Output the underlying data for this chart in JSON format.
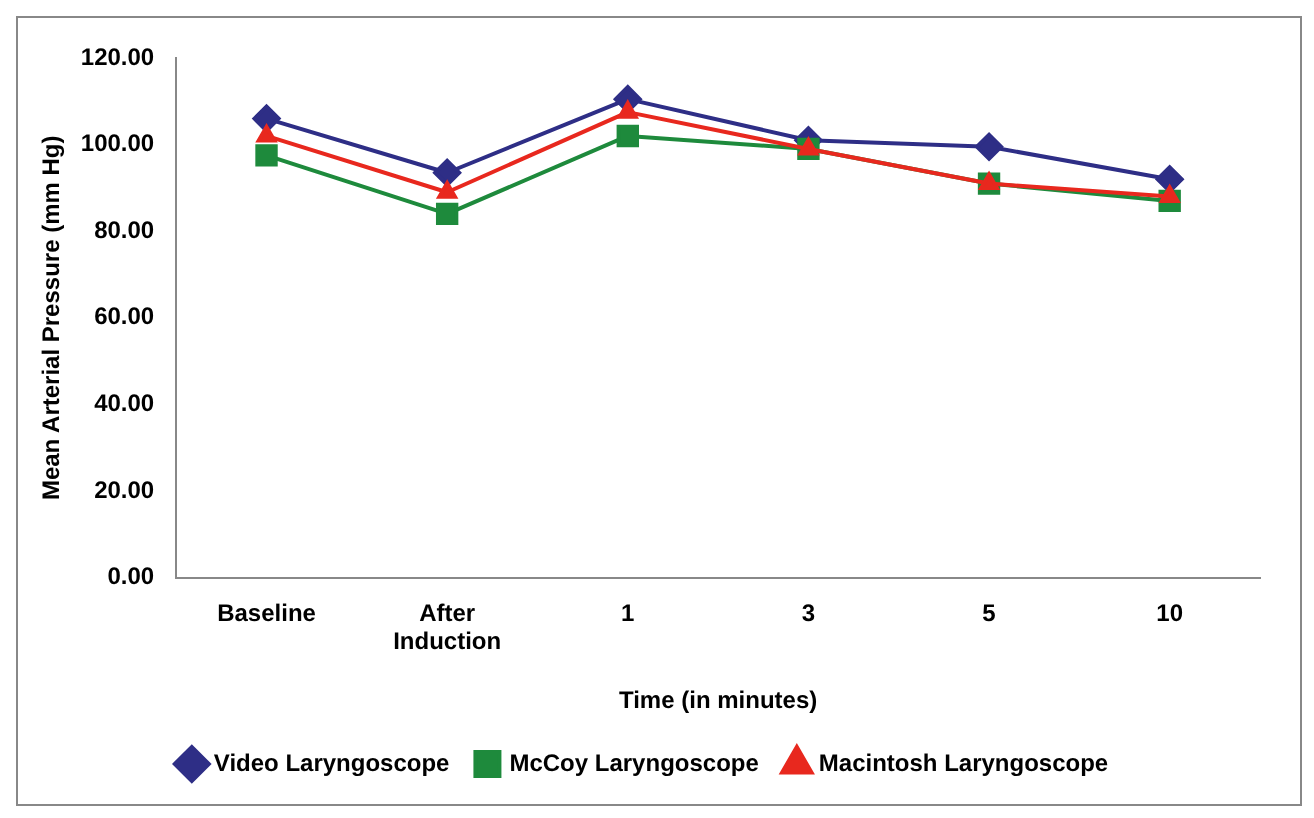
{
  "chart_data": {
    "type": "line",
    "xlabel": "Time (in minutes)",
    "ylabel": "Mean Arterial Pressure (mm Hg)",
    "categories": [
      "Baseline",
      "After Induction",
      "1",
      "3",
      "5",
      "10"
    ],
    "series": [
      {
        "name": "Video Laryngoscope",
        "color": "#2e2e86",
        "marker": "diamond",
        "values": [
          106,
          93.5,
          110.5,
          101,
          99.5,
          92
        ]
      },
      {
        "name": "McCoy Laryngoscope",
        "color": "#1e8a3c",
        "marker": "square",
        "values": [
          97.5,
          84,
          102,
          99,
          91,
          87
        ]
      },
      {
        "name": "Macintosh Laryngoscope",
        "color": "#e8281e",
        "marker": "triangle",
        "values": [
          102,
          89,
          107.5,
          99,
          91,
          88
        ]
      }
    ],
    "ylim": [
      0,
      120
    ],
    "yticks": [
      {
        "value": 0,
        "label": "0.00"
      },
      {
        "value": 20,
        "label": "20.00"
      },
      {
        "value": 40,
        "label": "40.00"
      },
      {
        "value": 60,
        "label": "60.00"
      },
      {
        "value": 80,
        "label": "80.00"
      },
      {
        "value": 100,
        "label": "100.00"
      },
      {
        "value": 120,
        "label": "120.00"
      }
    ],
    "grid": false,
    "legend": "bottom",
    "line_style": "solid"
  }
}
